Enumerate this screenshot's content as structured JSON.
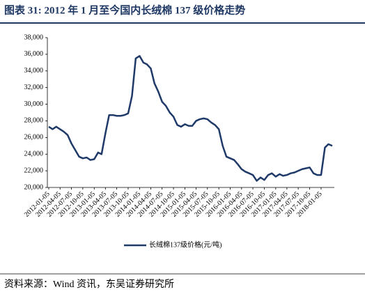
{
  "chart_data": {
    "type": "line",
    "title": "图表 31: 2012 年 1 月至今国内长绒棉 137 级价格走势",
    "source": "资料来源：Wind 资讯，东吴证券研究所",
    "x": [
      "2012-01-05",
      "2012-02-05",
      "2012-03-05",
      "2012-04-05",
      "2012-05-05",
      "2012-06-05",
      "2012-07-05",
      "2012-08-05",
      "2012-09-05",
      "2012-10-05",
      "2012-11-05",
      "2012-12-05",
      "2013-01-05",
      "2013-02-05",
      "2013-03-05",
      "2013-04-05",
      "2013-05-05",
      "2013-06-05",
      "2013-07-05",
      "2013-08-05",
      "2013-09-05",
      "2013-10-05",
      "2013-11-05",
      "2013-12-05",
      "2014-01-05",
      "2014-02-05",
      "2014-03-05",
      "2014-04-05",
      "2014-05-05",
      "2014-06-05",
      "2014-07-05",
      "2014-08-05",
      "2014-09-05",
      "2014-10-05",
      "2014-11-05",
      "2014-12-05",
      "2015-01-05",
      "2015-02-05",
      "2015-03-05",
      "2015-04-05",
      "2015-05-05",
      "2015-06-05",
      "2015-07-05",
      "2015-08-05",
      "2015-09-05",
      "2015-10-05",
      "2015-11-05",
      "2015-12-05",
      "2016-01-05",
      "2016-02-05",
      "2016-03-05",
      "2016-04-05",
      "2016-05-05",
      "2016-06-05",
      "2016-07-05",
      "2016-08-05",
      "2016-09-05",
      "2016-10-05",
      "2016-11-05",
      "2016-12-05",
      "2017-01-05",
      "2017-02-05",
      "2017-03-05",
      "2017-04-05",
      "2017-05-05",
      "2017-06-05",
      "2017-07-05",
      "2017-08-05",
      "2017-09-05",
      "2017-10-05",
      "2017-11-05",
      "2017-12-05",
      "2018-01-05",
      "2018-02-05",
      "2018-03-05",
      "2018-04-05"
    ],
    "series": [
      {
        "name": "长绒棉137级价格(元/吨)",
        "color": "#1f3a68",
        "values": [
          27300,
          27000,
          27300,
          27000,
          26700,
          26300,
          25300,
          24500,
          23700,
          23500,
          23600,
          23300,
          23400,
          24200,
          24000,
          26500,
          28700,
          28700,
          28600,
          28600,
          28700,
          28900,
          31000,
          35500,
          35800,
          35000,
          34800,
          34300,
          32500,
          31500,
          30300,
          29800,
          29000,
          28500,
          27500,
          27300,
          27600,
          27400,
          27400,
          28000,
          28200,
          28300,
          28200,
          27800,
          27500,
          27000,
          25000,
          23700,
          23500,
          23300,
          22800,
          22200,
          21900,
          21700,
          21500,
          20800,
          21200,
          20900,
          21500,
          21700,
          21300,
          21600,
          21400,
          21500,
          21700,
          21800,
          22000,
          22200,
          22300,
          22400,
          21700,
          21500,
          21500,
          24800,
          25200,
          25000
        ]
      }
    ],
    "xlim": [
      "2012-01-05",
      "2018-04-05"
    ],
    "xticks": [
      "2012-01-05",
      "2012-04-05",
      "2012-07-05",
      "2012-10-05",
      "2013-01-05",
      "2013-04-05",
      "2013-07-05",
      "2013-10-05",
      "2014-01-05",
      "2014-04-05",
      "2014-07-05",
      "2014-10-05",
      "2015-01-05",
      "2015-04-05",
      "2015-07-05",
      "2015-10-05",
      "2016-01-05",
      "2016-04-05",
      "2016-07-05",
      "2016-10-05",
      "2017-01-05",
      "2017-04-05",
      "2017-07-05",
      "2017-10-05",
      "2018-01-05"
    ],
    "ylim": [
      20000,
      38000
    ],
    "yticks": [
      {
        "value": 20000,
        "label": "20,000"
      },
      {
        "value": 22000,
        "label": "22,000"
      },
      {
        "value": 24000,
        "label": "24,000"
      },
      {
        "value": 26000,
        "label": "26,000"
      },
      {
        "value": 28000,
        "label": "28,000"
      },
      {
        "value": 30000,
        "label": "30,000"
      },
      {
        "value": 32000,
        "label": "32,000"
      },
      {
        "value": 34000,
        "label": "34,000"
      },
      {
        "value": 36000,
        "label": "36,000"
      },
      {
        "value": 38000,
        "label": "38,000"
      }
    ],
    "grid": false,
    "legend": "bottom"
  }
}
